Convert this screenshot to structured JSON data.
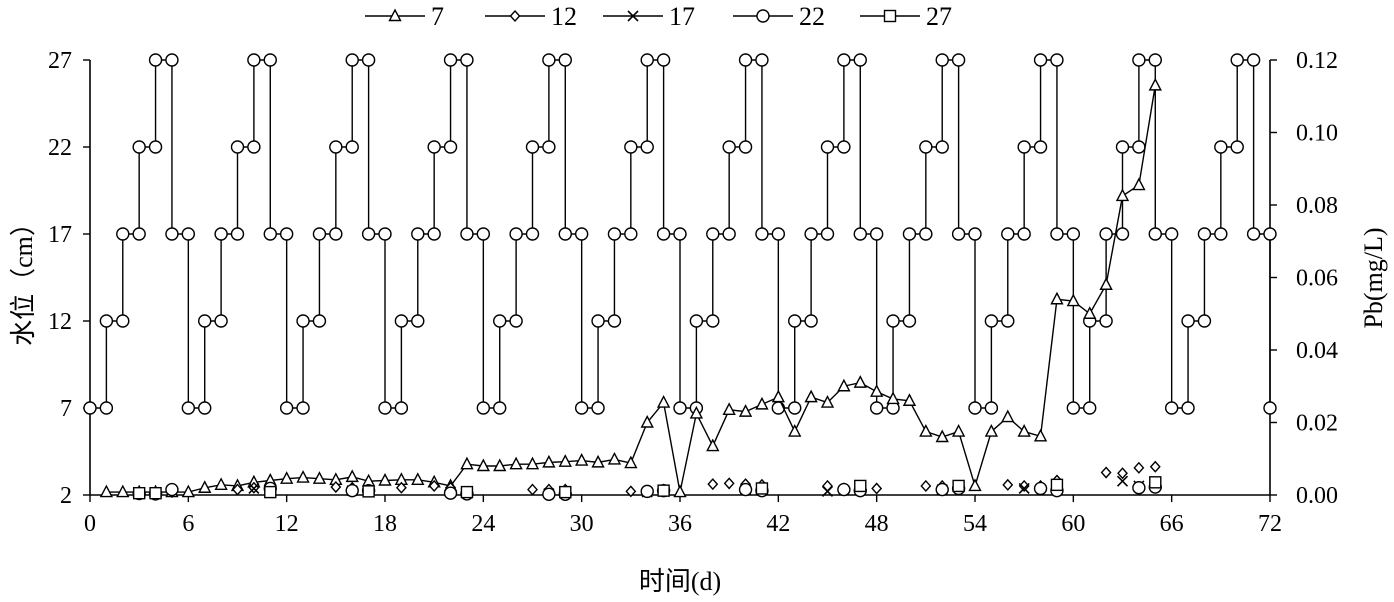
{
  "chart_data": {
    "type": "line",
    "xlabel": "时间(d)",
    "ylabel_left": "水位（cm）",
    "ylabel_right": "Pb(mg/L)",
    "x_ticks": [
      0,
      6,
      12,
      18,
      24,
      30,
      36,
      42,
      48,
      54,
      60,
      66,
      72
    ],
    "y_left_ticks": [
      2,
      7,
      12,
      17,
      22,
      27
    ],
    "y_right_ticks": [
      "0.00",
      "0.02",
      "0.04",
      "0.06",
      "0.08",
      "0.10",
      "0.12"
    ],
    "xlim": [
      0,
      72
    ],
    "ylim_left": [
      2,
      27
    ],
    "ylim_right": [
      0,
      0.12
    ],
    "grid": false,
    "legend_position": "top",
    "water_level": {
      "axis": "left",
      "marker": "circle",
      "points": [
        [
          0,
          7
        ],
        [
          1,
          7
        ],
        [
          1,
          12
        ],
        [
          2,
          12
        ],
        [
          2,
          17
        ],
        [
          3,
          17
        ],
        [
          3,
          22
        ],
        [
          4,
          22
        ],
        [
          4,
          27
        ],
        [
          5,
          27
        ],
        [
          5,
          17
        ],
        [
          6,
          17
        ],
        [
          6,
          7
        ],
        [
          7,
          7
        ],
        [
          7,
          12
        ],
        [
          8,
          12
        ],
        [
          8,
          17
        ],
        [
          9,
          17
        ],
        [
          9,
          22
        ],
        [
          10,
          22
        ],
        [
          10,
          27
        ],
        [
          11,
          27
        ],
        [
          11,
          17
        ],
        [
          12,
          17
        ],
        [
          12,
          7
        ],
        [
          13,
          7
        ],
        [
          13,
          12
        ],
        [
          14,
          12
        ],
        [
          14,
          17
        ],
        [
          15,
          17
        ],
        [
          15,
          22
        ],
        [
          16,
          22
        ],
        [
          16,
          27
        ],
        [
          17,
          27
        ],
        [
          17,
          17
        ],
        [
          18,
          17
        ],
        [
          18,
          7
        ],
        [
          19,
          7
        ],
        [
          19,
          12
        ],
        [
          20,
          12
        ],
        [
          20,
          17
        ],
        [
          21,
          17
        ],
        [
          21,
          22
        ],
        [
          22,
          22
        ],
        [
          22,
          27
        ],
        [
          23,
          27
        ],
        [
          23,
          17
        ],
        [
          24,
          17
        ],
        [
          24,
          7
        ],
        [
          25,
          7
        ],
        [
          25,
          12
        ],
        [
          26,
          12
        ],
        [
          26,
          17
        ],
        [
          27,
          17
        ],
        [
          27,
          22
        ],
        [
          28,
          22
        ],
        [
          28,
          27
        ],
        [
          29,
          27
        ],
        [
          29,
          17
        ],
        [
          30,
          17
        ],
        [
          30,
          7
        ],
        [
          31,
          7
        ],
        [
          31,
          12
        ],
        [
          32,
          12
        ],
        [
          32,
          17
        ],
        [
          33,
          17
        ],
        [
          33,
          22
        ],
        [
          34,
          22
        ],
        [
          34,
          27
        ],
        [
          35,
          27
        ],
        [
          35,
          17
        ],
        [
          36,
          17
        ],
        [
          36,
          7
        ],
        [
          37,
          7
        ],
        [
          37,
          12
        ],
        [
          38,
          12
        ],
        [
          38,
          17
        ],
        [
          39,
          17
        ],
        [
          39,
          22
        ],
        [
          40,
          22
        ],
        [
          40,
          27
        ],
        [
          41,
          27
        ],
        [
          41,
          17
        ],
        [
          42,
          17
        ],
        [
          42,
          7
        ],
        [
          43,
          7
        ],
        [
          43,
          12
        ],
        [
          44,
          12
        ],
        [
          44,
          17
        ],
        [
          45,
          17
        ],
        [
          45,
          22
        ],
        [
          46,
          22
        ],
        [
          46,
          27
        ],
        [
          47,
          27
        ],
        [
          47,
          17
        ],
        [
          48,
          17
        ],
        [
          48,
          7
        ],
        [
          49,
          7
        ],
        [
          49,
          12
        ],
        [
          50,
          12
        ],
        [
          50,
          17
        ],
        [
          51,
          17
        ],
        [
          51,
          22
        ],
        [
          52,
          22
        ],
        [
          52,
          27
        ],
        [
          53,
          27
        ],
        [
          53,
          17
        ],
        [
          54,
          17
        ],
        [
          54,
          7
        ],
        [
          55,
          7
        ],
        [
          55,
          12
        ],
        [
          56,
          12
        ],
        [
          56,
          17
        ],
        [
          57,
          17
        ],
        [
          57,
          22
        ],
        [
          58,
          22
        ],
        [
          58,
          27
        ],
        [
          59,
          27
        ],
        [
          59,
          17
        ],
        [
          60,
          17
        ],
        [
          60,
          7
        ],
        [
          61,
          7
        ],
        [
          61,
          12
        ],
        [
          62,
          12
        ],
        [
          62,
          17
        ],
        [
          63,
          17
        ],
        [
          63,
          22
        ],
        [
          64,
          22
        ],
        [
          64,
          27
        ],
        [
          65,
          27
        ],
        [
          65,
          17
        ],
        [
          66,
          17
        ],
        [
          66,
          7
        ],
        [
          67,
          7
        ],
        [
          67,
          12
        ],
        [
          68,
          12
        ],
        [
          68,
          17
        ],
        [
          69,
          17
        ],
        [
          69,
          22
        ],
        [
          70,
          22
        ],
        [
          70,
          27
        ],
        [
          71,
          27
        ],
        [
          71,
          17
        ],
        [
          72,
          17
        ],
        [
          72,
          7
        ]
      ]
    },
    "series": [
      {
        "name": "7",
        "marker": "triangle",
        "axis": "right",
        "points": [
          [
            1,
            0.0008
          ],
          [
            2,
            0.0008
          ],
          [
            3,
            0.0008
          ],
          [
            4,
            0.0008
          ],
          [
            5,
            0.0008
          ],
          [
            6,
            0.0008
          ],
          [
            7,
            0.002
          ],
          [
            8,
            0.0028
          ],
          [
            9,
            0.0025
          ],
          [
            10,
            0.0035
          ],
          [
            11,
            0.004
          ],
          [
            12,
            0.0045
          ],
          [
            13,
            0.0048
          ],
          [
            14,
            0.0045
          ],
          [
            15,
            0.0042
          ],
          [
            16,
            0.005
          ],
          [
            17,
            0.0038
          ],
          [
            18,
            0.004
          ],
          [
            19,
            0.0042
          ],
          [
            20,
            0.0042
          ],
          [
            21,
            0.0035
          ],
          [
            22,
            0.0025
          ],
          [
            23,
            0.0085
          ],
          [
            24,
            0.008
          ],
          [
            25,
            0.008
          ],
          [
            26,
            0.0085
          ],
          [
            27,
            0.0085
          ],
          [
            28,
            0.009
          ],
          [
            29,
            0.0092
          ],
          [
            30,
            0.0095
          ],
          [
            31,
            0.009
          ],
          [
            32,
            0.0098
          ],
          [
            33,
            0.0088
          ],
          [
            34,
            0.02
          ],
          [
            35,
            0.0255
          ],
          [
            36,
            0.0008
          ],
          [
            37,
            0.0225
          ],
          [
            38,
            0.0135
          ],
          [
            39,
            0.0235
          ],
          [
            40,
            0.023
          ],
          [
            41,
            0.025
          ],
          [
            42,
            0.027
          ],
          [
            43,
            0.0175
          ],
          [
            44,
            0.027
          ],
          [
            45,
            0.0255
          ],
          [
            46,
            0.03
          ],
          [
            47,
            0.031
          ],
          [
            48,
            0.0285
          ],
          [
            49,
            0.0265
          ],
          [
            50,
            0.026
          ],
          [
            51,
            0.0175
          ],
          [
            52,
            0.016
          ],
          [
            53,
            0.0175
          ],
          [
            54,
            0.0025
          ],
          [
            55,
            0.0175
          ],
          [
            56,
            0.0215
          ],
          [
            57,
            0.0175
          ],
          [
            58,
            0.0162
          ],
          [
            59,
            0.054
          ],
          [
            60,
            0.0535
          ],
          [
            61,
            0.05
          ],
          [
            62,
            0.058
          ],
          [
            63,
            0.0825
          ],
          [
            64,
            0.0855
          ],
          [
            65,
            0.113
          ]
        ]
      },
      {
        "name": "12",
        "marker": "diamond",
        "axis": "right",
        "points": [
          [
            4,
            0.0005
          ],
          [
            5,
            0.0008
          ],
          [
            9,
            0.0015
          ],
          [
            10,
            0.002
          ],
          [
            11,
            0.002
          ],
          [
            15,
            0.0022
          ],
          [
            16,
            0.002
          ],
          [
            19,
            0.002
          ],
          [
            21,
            0.0025
          ],
          [
            22,
            0.002
          ],
          [
            27,
            0.0015
          ],
          [
            28,
            0.0015
          ],
          [
            29,
            0.0015
          ],
          [
            33,
            0.001
          ],
          [
            35,
            0.0015
          ],
          [
            38,
            0.003
          ],
          [
            39,
            0.0032
          ],
          [
            40,
            0.003
          ],
          [
            41,
            0.0028
          ],
          [
            45,
            0.0025
          ],
          [
            46,
            0.0018
          ],
          [
            47,
            0.0018
          ],
          [
            48,
            0.0018
          ],
          [
            51,
            0.0025
          ],
          [
            52,
            0.0025
          ],
          [
            53,
            0.0025
          ],
          [
            56,
            0.0028
          ],
          [
            57,
            0.0025
          ],
          [
            58,
            0.0025
          ],
          [
            59,
            0.004
          ],
          [
            62,
            0.0062
          ],
          [
            63,
            0.006
          ],
          [
            64,
            0.0075
          ],
          [
            65,
            0.0078
          ]
        ]
      },
      {
        "name": "17",
        "marker": "cross",
        "axis": "right",
        "points": [
          [
            3,
            0.0005
          ],
          [
            4,
            0.0004
          ],
          [
            10,
            0.0018
          ],
          [
            16,
            0.0012
          ],
          [
            22,
            0.0008
          ],
          [
            28,
            0.0004
          ],
          [
            34,
            0.0008
          ],
          [
            40,
            0.0015
          ],
          [
            45,
            0.001
          ],
          [
            52,
            0.0015
          ],
          [
            57,
            0.0018
          ],
          [
            63,
            0.0038
          ],
          [
            64,
            0.0025
          ]
        ]
      },
      {
        "name": "22",
        "marker": "circle",
        "axis": "right",
        "points": [
          [
            3,
            0.0004
          ],
          [
            4,
            0.0003
          ],
          [
            5,
            0.0015
          ],
          [
            11,
            0.0018
          ],
          [
            16,
            0.0012
          ],
          [
            17,
            0.0012
          ],
          [
            22,
            0.0005
          ],
          [
            23,
            0.0003
          ],
          [
            28,
            0.0002
          ],
          [
            29,
            0.0002
          ],
          [
            34,
            0.001
          ],
          [
            35,
            0.0012
          ],
          [
            40,
            0.0015
          ],
          [
            41,
            0.0012
          ],
          [
            46,
            0.0015
          ],
          [
            47,
            0.0012
          ],
          [
            52,
            0.0015
          ],
          [
            53,
            0.0018
          ],
          [
            58,
            0.0018
          ],
          [
            59,
            0.0012
          ],
          [
            64,
            0.002
          ],
          [
            65,
            0.0022
          ]
        ]
      },
      {
        "name": "27",
        "marker": "square",
        "axis": "right",
        "points": [
          [
            3,
            0.0005
          ],
          [
            4,
            0.0005
          ],
          [
            11,
            0.0008
          ],
          [
            17,
            0.001
          ],
          [
            23,
            0.0008
          ],
          [
            29,
            0.0008
          ],
          [
            35,
            0.0012
          ],
          [
            41,
            0.0018
          ],
          [
            47,
            0.0025
          ],
          [
            53,
            0.0025
          ],
          [
            59,
            0.0028
          ],
          [
            65,
            0.0035
          ]
        ]
      }
    ]
  }
}
